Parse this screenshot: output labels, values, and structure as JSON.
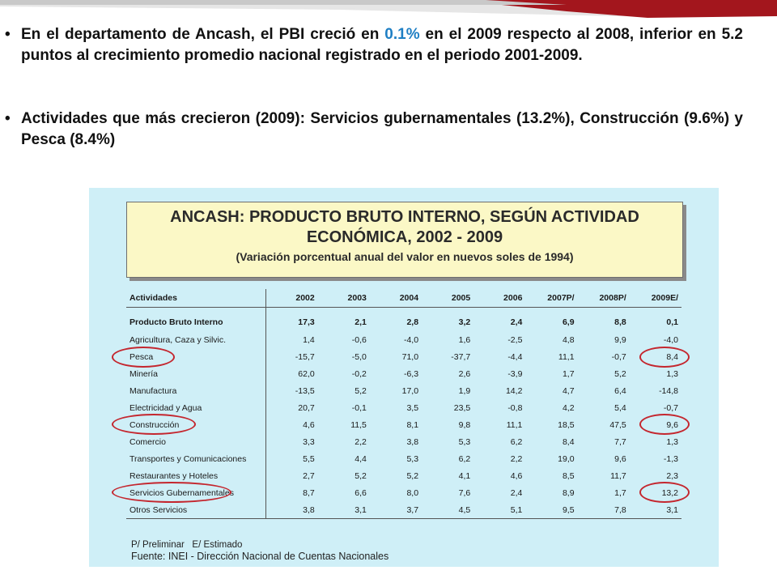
{
  "bullets": [
    {
      "before": "En el departamento de Ancash, el PBI creció en ",
      "highlight": "0.1%",
      "after": " en el 2009 respecto al 2008, inferior en 5.2 puntos al crecimiento promedio nacional registrado en el periodo 2001-2009."
    },
    {
      "text": "Actividades que más crecieron (2009): Servicios gubernamentales (13.2%), Construcción (9.6%) y Pesca (8.4%)"
    }
  ],
  "bullet_symbol": "•",
  "colors": {
    "highlight": "#1f7fc4",
    "panel": "#cfeff7",
    "title_box": "#fbf8c6",
    "ring": "#c4262e",
    "band": "#a3161d"
  },
  "table": {
    "title_line1": "ANCASH: PRODUCTO BRUTO INTERNO, SEGÚN ACTIVIDAD",
    "title_line2": "ECONÓMICA, 2002 - 2009",
    "subtitle": "(Variación porcentual anual del valor en nuevos soles de 1994)",
    "headers": [
      "Actividades",
      "2002",
      "2003",
      "2004",
      "2005",
      "2006",
      "2007P/",
      "2008P/",
      "2009E/"
    ],
    "rows": [
      {
        "label": "Producto Bruto Interno",
        "values": [
          "17,3",
          "2,1",
          "2,8",
          "3,2",
          "2,4",
          "6,9",
          "8,8",
          "0,1"
        ]
      },
      {
        "label": "Agricultura, Caza y Silvic.",
        "values": [
          "1,4",
          "-0,6",
          "-4,0",
          "1,6",
          "-2,5",
          "4,8",
          "9,9",
          "-4,0"
        ]
      },
      {
        "label": "Pesca",
        "values": [
          "-15,7",
          "-5,0",
          "71,0",
          "-37,7",
          "-4,4",
          "11,1",
          "-0,7",
          "8,4"
        ]
      },
      {
        "label": "Minería",
        "values": [
          "62,0",
          "-0,2",
          "-6,3",
          "2,6",
          "-3,9",
          "1,7",
          "5,2",
          "1,3"
        ]
      },
      {
        "label": "Manufactura",
        "values": [
          "-13,5",
          "5,2",
          "17,0",
          "1,9",
          "14,2",
          "4,7",
          "6,4",
          "-14,8"
        ]
      },
      {
        "label": "Electricidad y Agua",
        "values": [
          "20,7",
          "-0,1",
          "3,5",
          "23,5",
          "-0,8",
          "4,2",
          "5,4",
          "-0,7"
        ]
      },
      {
        "label": "Construcción",
        "values": [
          "4,6",
          "11,5",
          "8,1",
          "9,8",
          "11,1",
          "18,5",
          "47,5",
          "9,6"
        ]
      },
      {
        "label": "Comercio",
        "values": [
          "3,3",
          "2,2",
          "3,8",
          "5,3",
          "6,2",
          "8,4",
          "7,7",
          "1,3"
        ]
      },
      {
        "label": "Transportes y Comunicaciones",
        "values": [
          "5,5",
          "4,4",
          "5,3",
          "6,2",
          "2,2",
          "19,0",
          "9,6",
          "-1,3"
        ]
      },
      {
        "label": "Restaurantes y Hoteles",
        "values": [
          "2,7",
          "5,2",
          "5,2",
          "4,1",
          "4,6",
          "8,5",
          "11,7",
          "2,3"
        ]
      },
      {
        "label": "Servicios Gubernamentales",
        "values": [
          "8,7",
          "6,6",
          "8,0",
          "7,6",
          "2,4",
          "8,9",
          "1,7",
          "13,2"
        ]
      },
      {
        "label": "Otros Servicios",
        "values": [
          "3,8",
          "3,1",
          "3,7",
          "4,5",
          "5,1",
          "9,5",
          "7,8",
          "3,1"
        ]
      }
    ],
    "note": "P/ Preliminar   E/ Estimado",
    "source": "Fuente: INEI - Dirección Nacional de Cuentas Nacionales"
  }
}
